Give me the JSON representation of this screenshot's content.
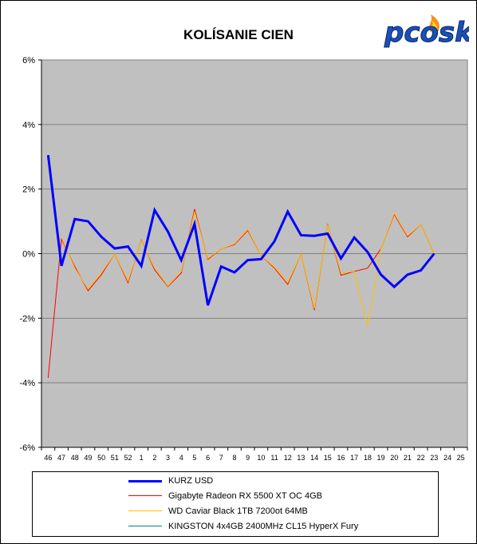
{
  "chart_data": {
    "type": "line",
    "title": "KOLÍSANIE CIEN",
    "xlabel": "",
    "ylabel": "",
    "categories": [
      "46",
      "47",
      "48",
      "49",
      "50",
      "51",
      "52",
      "1",
      "2",
      "3",
      "4",
      "5",
      "6",
      "7",
      "8",
      "9",
      "10",
      "11",
      "12",
      "13",
      "14",
      "15",
      "16",
      "17",
      "18",
      "19",
      "20",
      "21",
      "22",
      "23",
      "24",
      "25"
    ],
    "ylim": [
      -6,
      6
    ],
    "yticks": [
      -6,
      -4,
      -2,
      0,
      2,
      4,
      6
    ],
    "ytick_labels": [
      "-6%",
      "-4%",
      "-2%",
      "0%",
      "2%",
      "4%",
      "6%"
    ],
    "grid": true,
    "legend_position": "bottom",
    "series": [
      {
        "name": "KURZ USD",
        "color": "#0000ff",
        "width": 3,
        "values": [
          3.05,
          -0.38,
          1.07,
          1.0,
          0.52,
          0.16,
          0.22,
          -0.38,
          1.35,
          0.68,
          -0.2,
          0.92,
          -1.6,
          -0.4,
          -0.58,
          -0.2,
          -0.17,
          0.38,
          1.3,
          0.57,
          0.55,
          0.62,
          -0.15,
          0.5,
          0.05,
          -0.65,
          -1.03,
          -0.65,
          -0.52,
          0.0,
          null,
          null
        ]
      },
      {
        "name": "Gigabyte Radeon RX 5500 XT OC 4GB",
        "color": "#ff0000",
        "width": 1,
        "values": [
          -3.85,
          0.45,
          -0.4,
          -1.15,
          -0.65,
          0.0,
          -0.9,
          0.42,
          -0.5,
          -1.02,
          -0.6,
          1.38,
          -0.18,
          0.15,
          0.28,
          0.72,
          -0.05,
          -0.45,
          -0.95,
          0.0,
          -1.75,
          0.92,
          -0.67,
          -0.55,
          -0.45,
          0.15,
          1.22,
          0.52,
          0.9,
          0.0,
          null,
          null
        ]
      },
      {
        "name": "WD Caviar Black 1TB 7200ot 64MB",
        "color": "#ffc000",
        "width": 1,
        "values": [
          null,
          0.5,
          -0.45,
          -1.1,
          -0.6,
          0.0,
          -0.85,
          0.4,
          -0.45,
          -1.0,
          -0.55,
          1.3,
          -0.15,
          0.15,
          0.3,
          0.75,
          -0.05,
          -0.42,
          -0.9,
          0.0,
          -1.7,
          0.9,
          -0.6,
          -0.55,
          -2.25,
          0.15,
          1.25,
          0.55,
          0.9,
          0.0,
          null,
          null
        ]
      },
      {
        "name": "KINGSTON 4x4GB 2400MHz CL15 HyperX Fury",
        "color": "#008080",
        "width": 1,
        "values": [
          null,
          null,
          null,
          null,
          null,
          null,
          null,
          null,
          null,
          null,
          null,
          null,
          null,
          null,
          null,
          null,
          null,
          null,
          null,
          null,
          null,
          null,
          null,
          null,
          null,
          null,
          null,
          null,
          null,
          null,
          null,
          null
        ]
      }
    ]
  },
  "logo": {
    "text": "pcosk"
  },
  "colors": {
    "plot_bg": "#c0c0c0",
    "grid": "#808080"
  }
}
